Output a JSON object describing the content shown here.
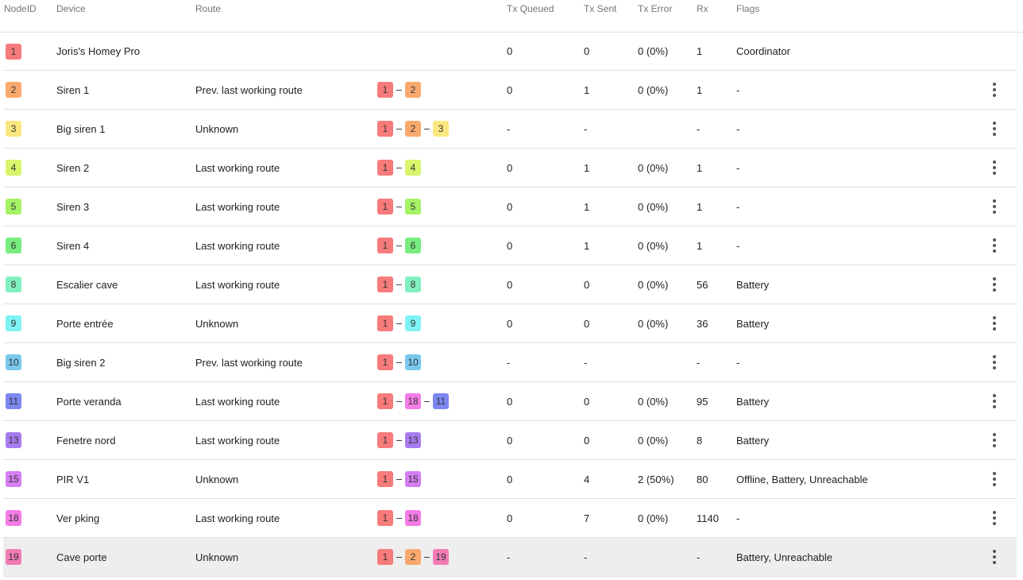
{
  "columns": {
    "nodeid": "NodeID",
    "device": "Device",
    "route": "Route",
    "tx_queued": "Tx Queued",
    "tx_sent": "Tx Sent",
    "tx_error": "Tx Error",
    "rx": "Rx",
    "flags": "Flags"
  },
  "node_colors": {
    "1": "#f77b7b",
    "2": "#f9a96e",
    "3": "#fbe77f",
    "4": "#d8f56b",
    "5": "#a5f266",
    "6": "#79ec7f",
    "8": "#80f0c0",
    "9": "#7ff3f5",
    "10": "#79c9ef",
    "11": "#7d87f2",
    "13": "#a77cf0",
    "15": "#d57ef4",
    "18": "#f57be6",
    "19": "#f27bb5"
  },
  "rows": [
    {
      "id": "1",
      "device": "Joris's Homey Pro",
      "route_label": "",
      "route": [],
      "tx_queued": "0",
      "tx_sent": "0",
      "tx_error": "0 (0%)",
      "rx": "1",
      "flags": "Coordinator",
      "menu": false
    },
    {
      "id": "2",
      "device": "Siren 1",
      "route_label": "Prev. last working route",
      "route": [
        "1",
        "2"
      ],
      "tx_queued": "0",
      "tx_sent": "1",
      "tx_error": "0 (0%)",
      "rx": "1",
      "flags": "-",
      "menu": true
    },
    {
      "id": "3",
      "device": "Big siren 1",
      "route_label": "Unknown",
      "route": [
        "1",
        "2",
        "3"
      ],
      "tx_queued": "-",
      "tx_sent": "-",
      "tx_error": "",
      "rx": "-",
      "flags": "-",
      "menu": true
    },
    {
      "id": "4",
      "device": "Siren 2",
      "route_label": "Last working route",
      "route": [
        "1",
        "4"
      ],
      "tx_queued": "0",
      "tx_sent": "1",
      "tx_error": "0 (0%)",
      "rx": "1",
      "flags": "-",
      "menu": true
    },
    {
      "id": "5",
      "device": "Siren 3",
      "route_label": "Last working route",
      "route": [
        "1",
        "5"
      ],
      "tx_queued": "0",
      "tx_sent": "1",
      "tx_error": "0 (0%)",
      "rx": "1",
      "flags": "-",
      "menu": true
    },
    {
      "id": "6",
      "device": "Siren 4",
      "route_label": "Last working route",
      "route": [
        "1",
        "6"
      ],
      "tx_queued": "0",
      "tx_sent": "1",
      "tx_error": "0 (0%)",
      "rx": "1",
      "flags": "-",
      "menu": true
    },
    {
      "id": "8",
      "device": "Escalier cave",
      "route_label": "Last working route",
      "route": [
        "1",
        "8"
      ],
      "tx_queued": "0",
      "tx_sent": "0",
      "tx_error": "0 (0%)",
      "rx": "56",
      "flags": "Battery",
      "menu": true
    },
    {
      "id": "9",
      "device": "Porte entrée",
      "route_label": "Unknown",
      "route": [
        "1",
        "9"
      ],
      "tx_queued": "0",
      "tx_sent": "0",
      "tx_error": "0 (0%)",
      "rx": "36",
      "flags": "Battery",
      "menu": true
    },
    {
      "id": "10",
      "device": "Big siren 2",
      "route_label": "Prev. last working route",
      "route": [
        "1",
        "10"
      ],
      "tx_queued": "-",
      "tx_sent": "-",
      "tx_error": "",
      "rx": "-",
      "flags": "-",
      "menu": true
    },
    {
      "id": "11",
      "device": "Porte veranda",
      "route_label": "Last working route",
      "route": [
        "1",
        "18",
        "11"
      ],
      "tx_queued": "0",
      "tx_sent": "0",
      "tx_error": "0 (0%)",
      "rx": "95",
      "flags": "Battery",
      "menu": true
    },
    {
      "id": "13",
      "device": "Fenetre nord",
      "route_label": "Last working route",
      "route": [
        "1",
        "13"
      ],
      "tx_queued": "0",
      "tx_sent": "0",
      "tx_error": "0 (0%)",
      "rx": "8",
      "flags": "Battery",
      "menu": true
    },
    {
      "id": "15",
      "device": "PIR V1",
      "route_label": "Unknown",
      "route": [
        "1",
        "15"
      ],
      "tx_queued": "0",
      "tx_sent": "4",
      "tx_error": "2 (50%)",
      "rx": "80",
      "flags": "Offline, Battery, Unreachable",
      "menu": true
    },
    {
      "id": "18",
      "device": "Ver pking",
      "route_label": "Last working route",
      "route": [
        "1",
        "18"
      ],
      "tx_queued": "0",
      "tx_sent": "7",
      "tx_error": "0 (0%)",
      "rx": "1140",
      "flags": "-",
      "menu": true
    },
    {
      "id": "19",
      "device": "Cave porte",
      "route_label": "Unknown",
      "route": [
        "1",
        "2",
        "19"
      ],
      "tx_queued": "-",
      "tx_sent": "-",
      "tx_error": "",
      "rx": "-",
      "flags": "Battery, Unreachable",
      "menu": true,
      "selected": true
    }
  ]
}
